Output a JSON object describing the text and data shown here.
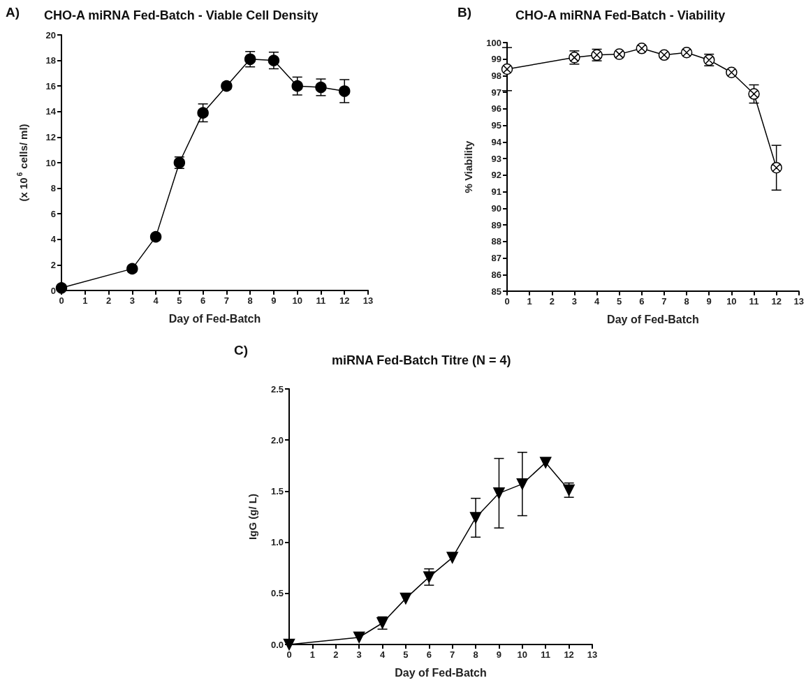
{
  "chart_data": [
    {
      "type": "line",
      "title": "CHO-A miRNA Fed-Batch - Viable Cell Density",
      "xlabel": "Day of Fed-Batch",
      "ylabel": "(x 10$^{6}$ cells/ ml)",
      "annotations": [
        "A)"
      ],
      "x": [
        0,
        3,
        4,
        5,
        6,
        7,
        8,
        9,
        10,
        11,
        12
      ],
      "series": [
        {
          "color": "#000000",
          "values": [
            0.2,
            1.7,
            4.2,
            10.0,
            13.9,
            16.0,
            18.1,
            18.0,
            16.0,
            15.9,
            15.6
          ],
          "errors": [
            null,
            null,
            null,
            0.45,
            0.7,
            null,
            0.6,
            0.65,
            0.7,
            0.65,
            0.9
          ]
        }
      ],
      "xlim": [
        0,
        13
      ],
      "xticks": [
        0,
        1,
        2,
        3,
        4,
        5,
        6,
        7,
        8,
        9,
        10,
        11,
        12,
        13
      ],
      "ylim": [
        0,
        20
      ],
      "yticks": [
        0,
        2,
        4,
        6,
        8,
        10,
        12,
        14,
        16,
        18,
        20
      ],
      "marker": "circle",
      "line_style": "solid",
      "grid": false
    },
    {
      "type": "line",
      "title": "CHO-A miRNA Fed-Batch - Viability",
      "xlabel": "Day of Fed-Batch",
      "ylabel": "% Viability",
      "annotations": [
        "B)"
      ],
      "x": [
        0,
        3,
        4,
        5,
        6,
        7,
        8,
        9,
        10,
        11,
        12
      ],
      "series": [
        {
          "color": "#000000",
          "values": [
            98.4,
            99.1,
            99.25,
            99.3,
            99.65,
            99.25,
            99.4,
            98.95,
            98.2,
            96.9,
            92.45
          ],
          "errors": [
            1.3,
            0.4,
            0.35,
            null,
            null,
            null,
            null,
            0.35,
            null,
            0.55,
            1.35
          ]
        }
      ],
      "xlim": [
        0,
        13
      ],
      "xticks": [
        0,
        1,
        2,
        3,
        4,
        5,
        6,
        7,
        8,
        9,
        10,
        11,
        12,
        13
      ],
      "ylim": [
        85,
        100
      ],
      "yticks": [
        85,
        86,
        87,
        88,
        89,
        90,
        91,
        92,
        93,
        94,
        95,
        96,
        97,
        98,
        99,
        100
      ],
      "marker": "cross",
      "line_style": "solid",
      "grid": false
    },
    {
      "type": "line",
      "title": "miRNA Fed-Batch Titre (N = 4)",
      "xlabel": "Day of Fed-Batch",
      "ylabel": "IgG (g/ L)",
      "annotations": [
        "C)"
      ],
      "x": [
        0,
        3,
        4,
        5,
        6,
        7,
        8,
        9,
        10,
        11,
        12
      ],
      "series": [
        {
          "color": "#000000",
          "values": [
            0.0,
            0.07,
            0.21,
            0.45,
            0.66,
            0.85,
            1.24,
            1.48,
            1.57,
            1.78,
            1.51
          ],
          "errors": [
            null,
            null,
            0.06,
            null,
            0.08,
            null,
            0.19,
            0.34,
            0.31,
            null,
            0.07
          ]
        }
      ],
      "xlim": [
        0,
        13
      ],
      "xticks": [
        0,
        1,
        2,
        3,
        4,
        5,
        6,
        7,
        8,
        9,
        10,
        11,
        12,
        13
      ],
      "ylim": [
        0,
        2.5
      ],
      "yticks": [
        {
          "value": 0,
          "label": "0.0"
        },
        {
          "value": 0.5,
          "label": "0.5"
        },
        {
          "value": 1,
          "label": "1.0"
        },
        {
          "value": 1.5,
          "label": "1.5"
        },
        {
          "value": 2,
          "label": "2.0"
        },
        {
          "value": 2.5,
          "label": "2.5"
        }
      ],
      "marker": "triangle",
      "line_style": "solid",
      "grid": false
    }
  ]
}
